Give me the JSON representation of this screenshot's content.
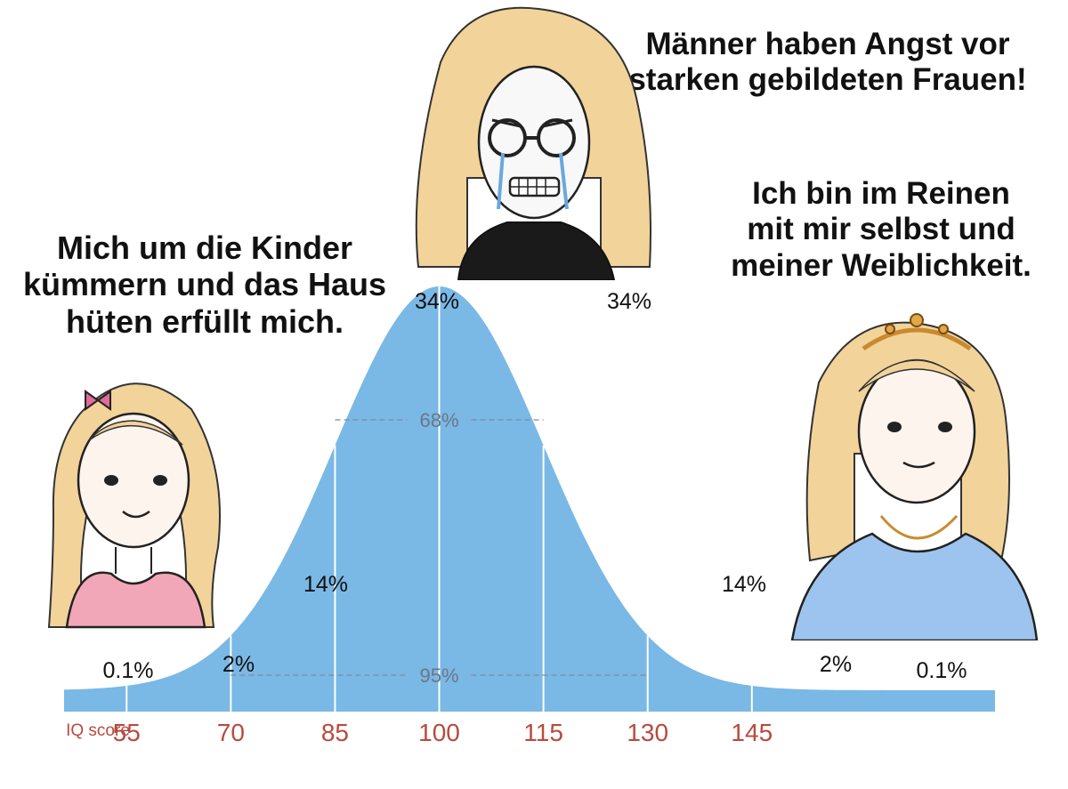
{
  "captions": {
    "left": [
      "Mich um die Kinder",
      "kümmern und das Haus",
      "hüten erfüllt mich."
    ],
    "top": [
      "Männer haben Angst vor",
      "starken gebildeten Frauen!"
    ],
    "right": [
      "Ich bin im Reinen",
      "mit mir selbst und",
      "meiner Weiblichkeit."
    ]
  },
  "chart_data": {
    "type": "area",
    "distribution": "normal",
    "mean": 100,
    "sd": 15,
    "xlabel": "IQ score",
    "xlim": [
      46,
      180
    ],
    "x_ticks": [
      55,
      70,
      85,
      100,
      115,
      130,
      145
    ],
    "x_tick_labels": [
      "55",
      "70",
      "85",
      "100",
      "115",
      "130",
      "145"
    ],
    "bands": [
      {
        "label": "0.1%",
        "x_range": [
          46,
          55
        ]
      },
      {
        "label": "2%",
        "x_range": [
          55,
          70
        ]
      },
      {
        "label": "14%",
        "x_range": [
          70,
          85
        ]
      },
      {
        "label": "34%",
        "x_range": [
          85,
          100
        ]
      },
      {
        "label": "34%",
        "x_range": [
          100,
          115
        ]
      },
      {
        "label": "14%",
        "x_range": [
          115,
          130
        ]
      },
      {
        "label": "2%",
        "x_range": [
          130,
          145
        ]
      },
      {
        "label": "0.1%",
        "x_range": [
          145,
          180
        ]
      }
    ],
    "spans": [
      {
        "label": "68%",
        "x_range": [
          85,
          115
        ]
      },
      {
        "label": "95%",
        "x_range": [
          70,
          130
        ]
      }
    ]
  },
  "colors": {
    "curve_fill": "#7ab8e6",
    "divider": "#ffffff",
    "span_line": "#7f8c99",
    "span_text": "#6b7783",
    "tick_label": "#b84a3e",
    "axis_label": "#b84a3e",
    "band_label": "#111111"
  },
  "figures": {
    "left": "woman-with-pink-bow-icon",
    "top": "crying-woman-with-glasses-icon",
    "right": "woman-with-tiara-icon"
  }
}
